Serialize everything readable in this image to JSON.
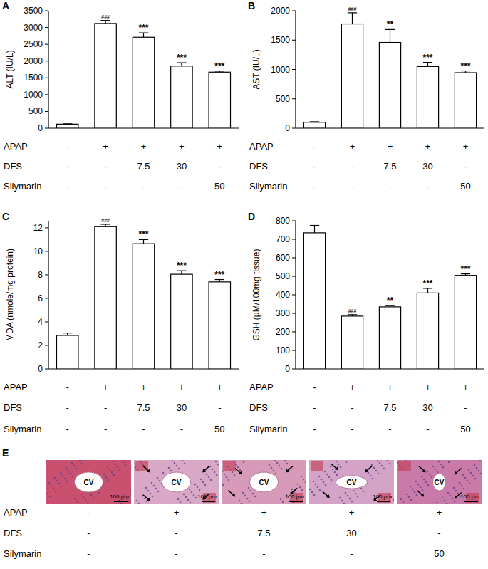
{
  "chart_data": [
    {
      "type": "bar",
      "panel": "A",
      "y_label": "ALT (IU/L)",
      "categories": [
        null,
        null,
        null,
        null,
        null
      ],
      "values": [
        120,
        3120,
        2710,
        1850,
        1670
      ],
      "errors": [
        10,
        90,
        130,
        100,
        30
      ],
      "significance": [
        null,
        "###",
        "***",
        "***",
        "***"
      ],
      "color": "#ffffff",
      "grid": false,
      "ylim": [
        0,
        3500
      ],
      "yticks": [
        0,
        500,
        1000,
        1500,
        2000,
        2500,
        3000,
        3500
      ],
      "treatment_rows": [
        {
          "label": "APAP",
          "cells": [
            "-",
            "+",
            "+",
            "+",
            "+"
          ]
        },
        {
          "label": "DFS",
          "cells": [
            "-",
            "-",
            "7.5",
            "30",
            "-"
          ]
        },
        {
          "label": "Silymarin",
          "cells": [
            "-",
            "-",
            "-",
            "-",
            "50"
          ]
        }
      ]
    },
    {
      "type": "bar",
      "panel": "B",
      "y_label": "AST (IU/L)",
      "categories": [
        null,
        null,
        null,
        null,
        null
      ],
      "values": [
        100,
        1775,
        1460,
        1050,
        945
      ],
      "errors": [
        10,
        190,
        220,
        70,
        30
      ],
      "significance": [
        null,
        "###",
        "**",
        "***",
        "***"
      ],
      "color": "#ffffff",
      "grid": false,
      "ylim": [
        0,
        2000
      ],
      "yticks": [
        0,
        500,
        1000,
        1500,
        2000
      ],
      "treatment_rows": [
        {
          "label": "APAP",
          "cells": [
            "-",
            "+",
            "+",
            "+",
            "+"
          ]
        },
        {
          "label": "DFS",
          "cells": [
            "-",
            "-",
            "7.5",
            "30",
            "-"
          ]
        },
        {
          "label": "Silymarin",
          "cells": [
            "-",
            "-",
            "-",
            "-",
            "50"
          ]
        }
      ]
    },
    {
      "type": "bar",
      "panel": "C",
      "y_label": "MDA (nmole/mg protein)",
      "categories": [
        null,
        null,
        null,
        null,
        null
      ],
      "values": [
        2.85,
        12.1,
        10.65,
        8.05,
        7.4
      ],
      "errors": [
        0.2,
        0.2,
        0.35,
        0.3,
        0.2
      ],
      "significance": [
        null,
        "###",
        "***",
        "***",
        "***"
      ],
      "color": "#ffffff",
      "grid": false,
      "ylim": [
        0,
        12.6
      ],
      "yticks": [
        0,
        2,
        4,
        6,
        8,
        10,
        12
      ],
      "treatment_rows": [
        {
          "label": "APAP",
          "cells": [
            "-",
            "+",
            "+",
            "+",
            "+"
          ]
        },
        {
          "label": "DFS",
          "cells": [
            "-",
            "-",
            "7.5",
            "30",
            "-"
          ]
        },
        {
          "label": "Silymarin",
          "cells": [
            "-",
            "-",
            "-",
            "-",
            "50"
          ]
        }
      ]
    },
    {
      "type": "bar",
      "panel": "D",
      "y_label": "GSH (μM/100mg tissue)",
      "categories": [
        null,
        null,
        null,
        null,
        null
      ],
      "values": [
        735,
        285,
        335,
        410,
        505
      ],
      "errors": [
        40,
        8,
        8,
        25,
        8
      ],
      "significance": [
        null,
        "###",
        "**",
        "***",
        "***"
      ],
      "color": "#ffffff",
      "grid": false,
      "ylim": [
        0,
        800
      ],
      "yticks": [
        0,
        100,
        200,
        300,
        400,
        500,
        600,
        700,
        800
      ],
      "treatment_rows": [
        {
          "label": "APAP",
          "cells": [
            "-",
            "+",
            "+",
            "+",
            "+"
          ]
        },
        {
          "label": "DFS",
          "cells": [
            "-",
            "-",
            "7.5",
            "30",
            "-"
          ]
        },
        {
          "label": "Silymarin",
          "cells": [
            "-",
            "-",
            "-",
            "-",
            "50"
          ]
        }
      ]
    }
  ],
  "histology": {
    "panel": "E",
    "images": [
      {
        "label": "CV",
        "scale_bar": "100 μm"
      },
      {
        "label": "CV",
        "scale_bar": "100 μm"
      },
      {
        "label": "CV",
        "scale_bar": "100 μm"
      },
      {
        "label": "CV",
        "scale_bar": "100 μm"
      },
      {
        "label": "CV",
        "scale_bar": "100 μm"
      }
    ],
    "treatment_rows": [
      {
        "label": "APAP",
        "cells": [
          "-",
          "+",
          "+",
          "+",
          "+"
        ]
      },
      {
        "label": "DFS",
        "cells": [
          "-",
          "-",
          "7.5",
          "30",
          "-"
        ]
      },
      {
        "label": "Silymarin",
        "cells": [
          "-",
          "-",
          "-",
          "-",
          "50"
        ]
      }
    ]
  }
}
